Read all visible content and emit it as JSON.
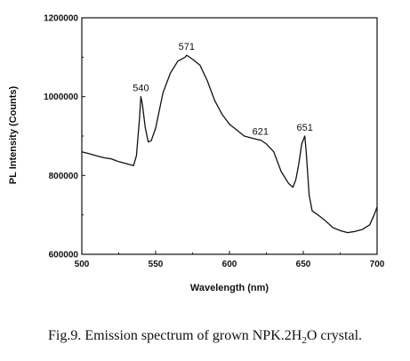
{
  "chart_data": {
    "type": "line",
    "xlabel": "Wavelength (nm)",
    "ylabel": "PL Intensity (Counts)",
    "xlim": [
      500,
      700
    ],
    "ylim": [
      600000,
      1200000
    ],
    "xticks": [
      500,
      550,
      600,
      650,
      700
    ],
    "xtick_labels": [
      "500",
      "550",
      "600",
      "650",
      "700"
    ],
    "yticks": [
      600000,
      800000,
      1000000,
      1200000
    ],
    "ytick_labels": [
      "600000",
      "800000",
      "1000000",
      "1200000"
    ],
    "grid": false,
    "series": [
      {
        "x": [
          500,
          505,
          510,
          515,
          520,
          525,
          530,
          535,
          537,
          539,
          540,
          541,
          543,
          545,
          547,
          550,
          555,
          560,
          565,
          570,
          571,
          575,
          580,
          585,
          590,
          595,
          600,
          605,
          610,
          615,
          620,
          621,
          625,
          630,
          635,
          640,
          643,
          645,
          647,
          649,
          651,
          652,
          654,
          656,
          660,
          665,
          670,
          675,
          680,
          685,
          690,
          695,
          698,
          700
        ],
        "y": [
          860000,
          855000,
          850000,
          845000,
          842000,
          835000,
          830000,
          825000,
          850000,
          940000,
          1000000,
          980000,
          920000,
          885000,
          888000,
          920000,
          1010000,
          1060000,
          1090000,
          1100000,
          1105000,
          1095000,
          1080000,
          1040000,
          990000,
          955000,
          930000,
          915000,
          900000,
          895000,
          890000,
          890000,
          880000,
          860000,
          810000,
          780000,
          770000,
          790000,
          830000,
          880000,
          900000,
          860000,
          750000,
          710000,
          700000,
          685000,
          668000,
          660000,
          655000,
          658000,
          663000,
          675000,
          700000,
          720000
        ]
      }
    ],
    "annotations": [
      {
        "text": "540",
        "x": 540,
        "y": 1000000
      },
      {
        "text": "571",
        "x": 571,
        "y": 1105000
      },
      {
        "text": "621",
        "x": 621,
        "y": 890000
      },
      {
        "text": "651",
        "x": 651,
        "y": 900000
      }
    ]
  },
  "caption": {
    "prefix": "Fig.9. Emission spectrum of grown NPK.2H",
    "subscript": "2",
    "suffix": "O crystal."
  }
}
